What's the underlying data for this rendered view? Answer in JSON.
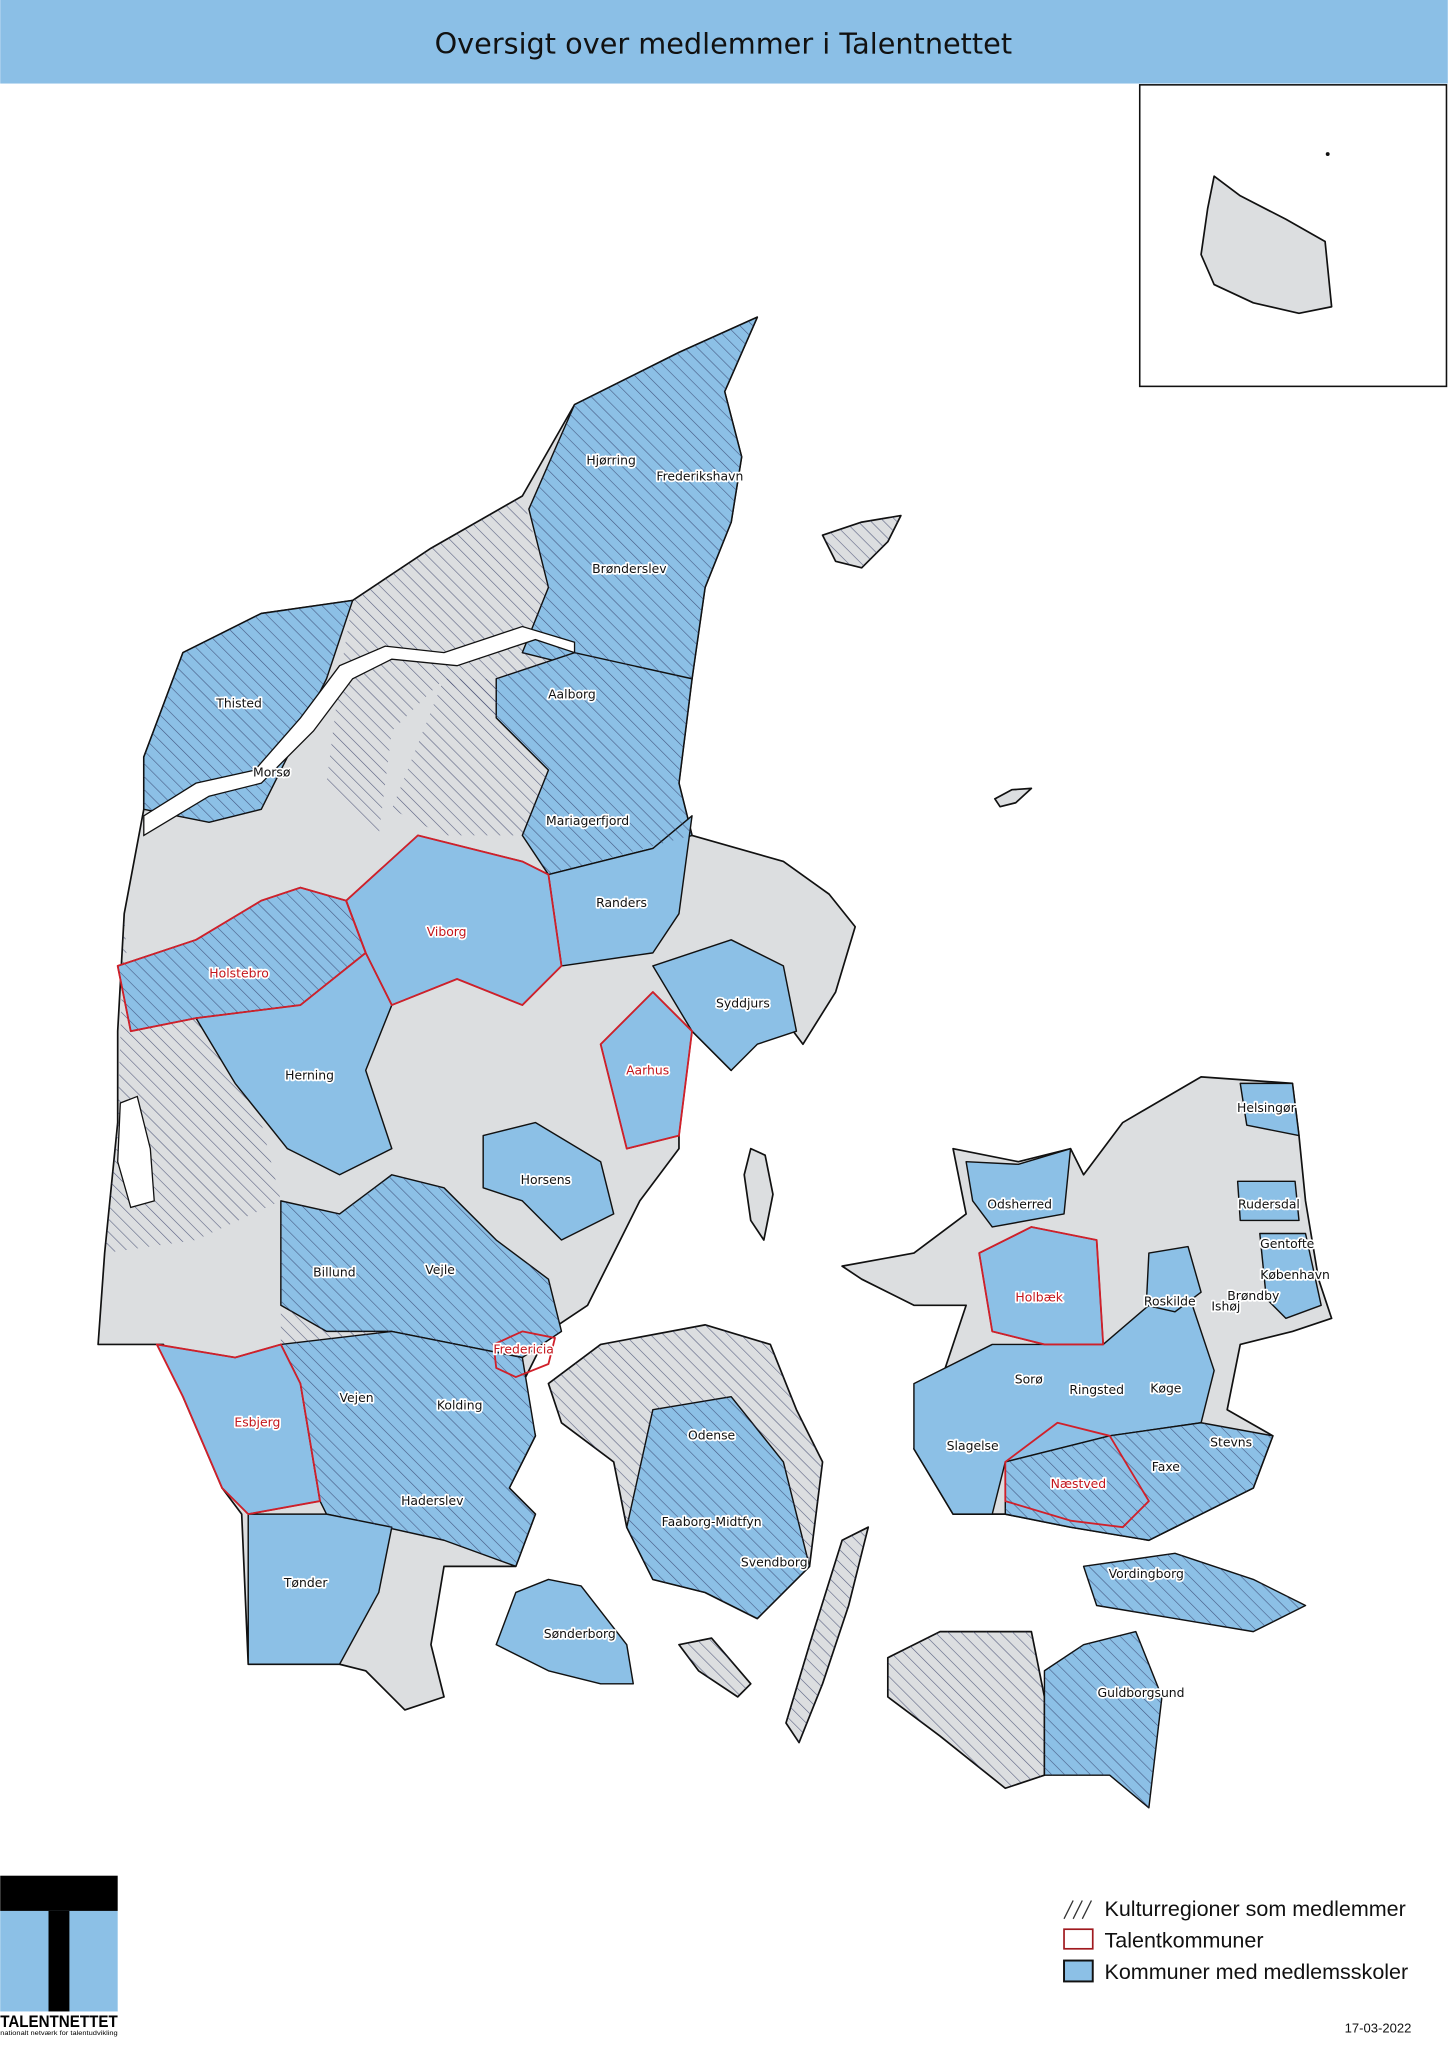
{
  "title": "Oversigt over medlemmer i Talentnettet",
  "colors": {
    "title_bar": "#8bbfe6",
    "member_municipality": "#8cc0e6",
    "other_municipality": "#dcdee0",
    "talent_outline": "#d0202a",
    "hatch": "#2b3560"
  },
  "legend": {
    "items": [
      {
        "label": "Kulturregioner som medlemmer",
        "symbol": "hatch"
      },
      {
        "label": "Talentkommuner",
        "symbol": "red-outline"
      },
      {
        "label": "Kommuner med medlemsskoler",
        "symbol": "blue-fill"
      }
    ]
  },
  "labels": [
    {
      "name": "Hjørring",
      "type": "member"
    },
    {
      "name": "Frederikshavn",
      "type": "member"
    },
    {
      "name": "Brønderslev",
      "type": "member"
    },
    {
      "name": "Thisted",
      "type": "member"
    },
    {
      "name": "Aalborg",
      "type": "member"
    },
    {
      "name": "Morsø",
      "type": "member"
    },
    {
      "name": "Mariagerfjord",
      "type": "member"
    },
    {
      "name": "Randers",
      "type": "member"
    },
    {
      "name": "Viborg",
      "type": "talent"
    },
    {
      "name": "Holstebro",
      "type": "talent"
    },
    {
      "name": "Syddjurs",
      "type": "member"
    },
    {
      "name": "Herning",
      "type": "member"
    },
    {
      "name": "Aarhus",
      "type": "talent"
    },
    {
      "name": "Horsens",
      "type": "member"
    },
    {
      "name": "Billund",
      "type": "member"
    },
    {
      "name": "Vejle",
      "type": "member"
    },
    {
      "name": "Fredericia",
      "type": "talent"
    },
    {
      "name": "Vejen",
      "type": "member"
    },
    {
      "name": "Kolding",
      "type": "member"
    },
    {
      "name": "Esbjerg",
      "type": "talent"
    },
    {
      "name": "Haderslev",
      "type": "member"
    },
    {
      "name": "Odense",
      "type": "member"
    },
    {
      "name": "Faaborg-Midtfyn",
      "type": "member"
    },
    {
      "name": "Svendborg",
      "type": "member"
    },
    {
      "name": "Tønder",
      "type": "member"
    },
    {
      "name": "Sønderborg",
      "type": "member"
    },
    {
      "name": "Helsingør",
      "type": "member"
    },
    {
      "name": "Rudersdal",
      "type": "member"
    },
    {
      "name": "Gentofte",
      "type": "member"
    },
    {
      "name": "København",
      "type": "member"
    },
    {
      "name": "Brøndby",
      "type": "member"
    },
    {
      "name": "Ishøj",
      "type": "member"
    },
    {
      "name": "Roskilde",
      "type": "member"
    },
    {
      "name": "Odsherred",
      "type": "member"
    },
    {
      "name": "Holbæk",
      "type": "talent"
    },
    {
      "name": "Sorø",
      "type": "member"
    },
    {
      "name": "Ringsted",
      "type": "member"
    },
    {
      "name": "Køge",
      "type": "member"
    },
    {
      "name": "Slagelse",
      "type": "member"
    },
    {
      "name": "Stevns",
      "type": "member"
    },
    {
      "name": "Faxe",
      "type": "member"
    },
    {
      "name": "Næstved",
      "type": "talent"
    },
    {
      "name": "Vordingborg",
      "type": "member"
    },
    {
      "name": "Guldborgsund",
      "type": "member"
    }
  ],
  "logo": {
    "name": "TALENTNETTET",
    "tagline": "nationalt netværk for talentudvikling"
  },
  "date": "17-03-2022"
}
